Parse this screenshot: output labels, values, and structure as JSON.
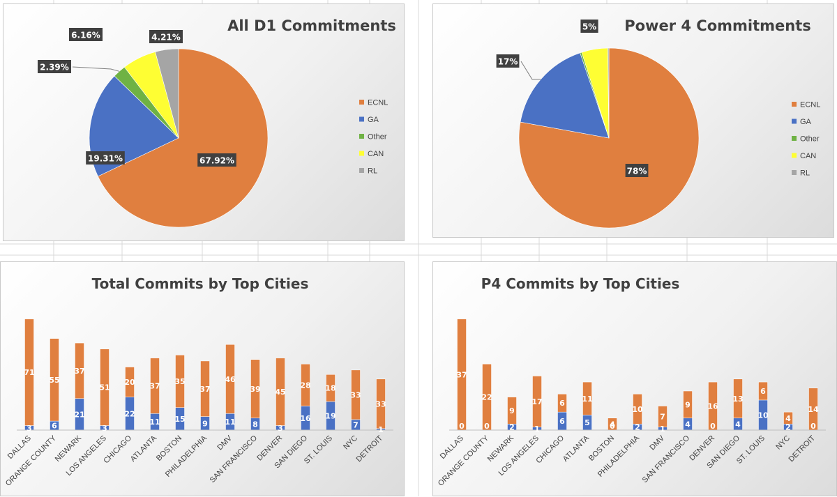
{
  "colors": {
    "ECNL": "#E07F3F",
    "GA": "#4A71C4",
    "Other": "#6FB244",
    "CAN": "#FEFE33",
    "RL": "#A5A5A5",
    "callout_bg": "#404040",
    "grid": "#d9d9d9"
  },
  "chart_data": [
    {
      "id": "pie-all",
      "type": "pie",
      "title": "All D1 Commitments",
      "legend_position": "right",
      "slices": [
        {
          "name": "ECNL",
          "value": 67.92,
          "label": "67.92%"
        },
        {
          "name": "GA",
          "value": 19.31,
          "label": "19.31%"
        },
        {
          "name": "Other",
          "value": 2.39,
          "label": "2.39%"
        },
        {
          "name": "CAN",
          "value": 6.16,
          "label": "6.16%"
        },
        {
          "name": "RL",
          "value": 4.21,
          "label": "4.21%"
        }
      ],
      "legend": [
        "ECNL",
        "GA",
        "Other",
        "CAN",
        "RL"
      ]
    },
    {
      "id": "pie-p4",
      "type": "pie",
      "title": "Power 4 Commitments",
      "legend_position": "right",
      "slices": [
        {
          "name": "ECNL",
          "value": 78,
          "label": "78%"
        },
        {
          "name": "GA",
          "value": 17,
          "label": "17%"
        },
        {
          "name": "Other",
          "value": 0.3,
          "label": ""
        },
        {
          "name": "CAN",
          "value": 4.7,
          "label": "5%"
        },
        {
          "name": "RL",
          "value": 0.2,
          "label": ""
        }
      ],
      "legend": [
        "ECNL",
        "GA",
        "Other",
        "CAN",
        "RL"
      ]
    },
    {
      "id": "bar-total",
      "type": "bar",
      "stacked": true,
      "title": "Total Commits by Top Cities",
      "categories": [
        "DALLAS",
        "ORANGE COUNTY",
        "NEWARK",
        "LOS ANGELES",
        "CHICAGO",
        "ATLANTA",
        "BOSTON",
        "PHILADELPHIA",
        "DMV",
        "SAN FRANCISCO",
        "DENVER",
        "SAN DIEGO",
        "ST. LOUIS",
        "NYC",
        "DETROIT"
      ],
      "series": [
        {
          "key": "GA",
          "values": [
            3,
            6,
            21,
            3,
            22,
            11,
            15,
            9,
            11,
            8,
            3,
            16,
            19,
            7,
            1
          ]
        },
        {
          "key": "ECNL",
          "values": [
            71,
            55,
            37,
            51,
            20,
            37,
            35,
            37,
            46,
            39,
            45,
            28,
            18,
            33,
            33
          ]
        }
      ],
      "ylim": [
        0,
        78
      ]
    },
    {
      "id": "bar-p4",
      "type": "bar",
      "stacked": true,
      "title": "P4 Commits by Top Cities",
      "categories": [
        "DALLAS",
        "ORANGE COUNTY",
        "NEWARK",
        "LOS ANGELES",
        "CHICAGO",
        "ATLANTA",
        "BOSTON",
        "PHILADELPHIA",
        "DMV",
        "SAN FRANCISCO",
        "DENVER",
        "SAN DIEGO",
        "ST. LOUIS",
        "NYC",
        "DETROIT"
      ],
      "series": [
        {
          "key": "GA",
          "values": [
            0,
            0,
            2,
            1,
            6,
            5,
            0,
            2,
            1,
            4,
            0,
            4,
            10,
            2,
            0
          ]
        },
        {
          "key": "ECNL",
          "values": [
            37,
            22,
            9,
            17,
            6,
            11,
            4,
            10,
            7,
            9,
            16,
            13,
            6,
            4,
            14
          ]
        }
      ],
      "ylim": [
        0,
        39
      ]
    }
  ]
}
